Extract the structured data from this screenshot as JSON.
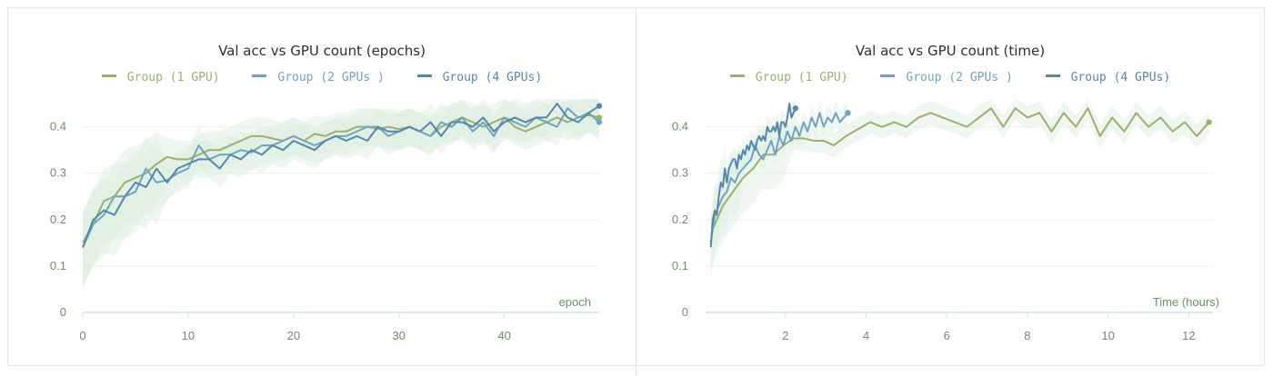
{
  "colors": {
    "g1": "#99b169",
    "g2": "#6ea3c6",
    "g4": "#5388ad",
    "band": "#dceede",
    "grid": "#edf0ee",
    "axis": "#cfe6d8",
    "tick_text": "#6d8f6a"
  },
  "legend": [
    "Group (1 GPU)",
    "Group (2 GPUs )",
    "Group (4 GPUs)"
  ],
  "chart_data": [
    {
      "type": "line",
      "title": "Val acc vs GPU count (epochs)",
      "xlabel": "epoch",
      "ylabel": "",
      "xlim": [
        0,
        49
      ],
      "ylim": [
        0,
        0.46
      ],
      "xticks": [
        0,
        10,
        20,
        30,
        40
      ],
      "yticks": [
        0,
        0.1,
        0.2,
        0.3,
        0.4
      ],
      "grid": true,
      "legend_position": "top",
      "series": [
        {
          "name": "Group (1 GPU)",
          "color_key": "g1",
          "x": [
            0,
            1,
            2,
            3,
            4,
            5,
            6,
            7,
            8,
            9,
            10,
            11,
            12,
            13,
            14,
            15,
            16,
            17,
            18,
            19,
            20,
            21,
            22,
            23,
            24,
            25,
            26,
            27,
            28,
            29,
            30,
            31,
            32,
            33,
            34,
            35,
            36,
            37,
            38,
            39,
            40,
            41,
            42,
            43,
            44,
            45,
            46,
            47,
            48,
            49
          ],
          "y": [
            0.15,
            0.19,
            0.24,
            0.25,
            0.28,
            0.29,
            0.3,
            0.32,
            0.335,
            0.33,
            0.33,
            0.34,
            0.35,
            0.35,
            0.36,
            0.37,
            0.38,
            0.38,
            0.375,
            0.37,
            0.38,
            0.37,
            0.385,
            0.38,
            0.39,
            0.39,
            0.4,
            0.4,
            0.395,
            0.4,
            0.395,
            0.4,
            0.39,
            0.38,
            0.4,
            0.41,
            0.42,
            0.41,
            0.4,
            0.41,
            0.42,
            0.4,
            0.39,
            0.4,
            0.41,
            0.42,
            0.41,
            0.42,
            0.425,
            0.42
          ]
        },
        {
          "name": "Group (2 GPUs )",
          "color_key": "g2",
          "x": [
            0,
            1,
            2,
            3,
            4,
            5,
            6,
            7,
            8,
            9,
            10,
            11,
            12,
            13,
            14,
            15,
            16,
            17,
            18,
            19,
            20,
            21,
            22,
            23,
            24,
            25,
            26,
            27,
            28,
            29,
            30,
            31,
            32,
            33,
            34,
            35,
            36,
            37,
            38,
            39,
            40,
            41,
            42,
            43,
            44,
            45,
            46,
            47,
            48,
            49
          ],
          "y": [
            0.14,
            0.19,
            0.21,
            0.25,
            0.25,
            0.26,
            0.31,
            0.28,
            0.285,
            0.3,
            0.31,
            0.36,
            0.33,
            0.34,
            0.34,
            0.35,
            0.345,
            0.36,
            0.36,
            0.37,
            0.38,
            0.37,
            0.36,
            0.37,
            0.38,
            0.38,
            0.39,
            0.4,
            0.4,
            0.38,
            0.39,
            0.4,
            0.39,
            0.38,
            0.41,
            0.4,
            0.42,
            0.39,
            0.41,
            0.38,
            0.42,
            0.41,
            0.4,
            0.42,
            0.41,
            0.4,
            0.44,
            0.42,
            0.43,
            0.41
          ]
        },
        {
          "name": "Group (4 GPUs)",
          "color_key": "g4",
          "x": [
            0,
            1,
            2,
            3,
            4,
            5,
            6,
            7,
            8,
            9,
            10,
            11,
            12,
            13,
            14,
            15,
            16,
            17,
            18,
            19,
            20,
            21,
            22,
            23,
            24,
            25,
            26,
            27,
            28,
            29,
            30,
            31,
            32,
            33,
            34,
            35,
            36,
            37,
            38,
            39,
            40,
            41,
            42,
            43,
            44,
            45,
            46,
            47,
            48,
            49
          ],
          "y": [
            0.14,
            0.2,
            0.22,
            0.21,
            0.25,
            0.28,
            0.27,
            0.31,
            0.28,
            0.31,
            0.32,
            0.33,
            0.33,
            0.31,
            0.34,
            0.33,
            0.35,
            0.34,
            0.36,
            0.35,
            0.37,
            0.36,
            0.35,
            0.37,
            0.38,
            0.37,
            0.38,
            0.37,
            0.4,
            0.39,
            0.39,
            0.4,
            0.39,
            0.41,
            0.38,
            0.41,
            0.41,
            0.4,
            0.42,
            0.39,
            0.41,
            0.42,
            0.41,
            0.42,
            0.42,
            0.45,
            0.42,
            0.41,
            0.43,
            0.445
          ]
        }
      ]
    },
    {
      "type": "line",
      "title": "Val acc vs GPU count (time)",
      "xlabel": "Time (hours)",
      "ylabel": "",
      "xlim": [
        0,
        12.6
      ],
      "ylim": [
        0,
        0.46
      ],
      "xticks": [
        2,
        4,
        6,
        8,
        10,
        12
      ],
      "yticks": [
        0,
        0.1,
        0.2,
        0.3,
        0.4
      ],
      "grid": true,
      "legend_position": "top",
      "series": [
        {
          "name": "Group (1 GPU)",
          "color_key": "g1",
          "x": [
            0.2,
            0.45,
            0.7,
            0.95,
            1.2,
            1.45,
            1.7,
            1.95,
            2.2,
            2.45,
            2.7,
            2.95,
            3.2,
            3.5,
            3.8,
            4.1,
            4.4,
            4.7,
            5.0,
            5.3,
            5.6,
            5.9,
            6.2,
            6.5,
            6.8,
            7.1,
            7.4,
            7.7,
            8.0,
            8.3,
            8.6,
            8.9,
            9.2,
            9.5,
            9.8,
            10.1,
            10.4,
            10.7,
            11.0,
            11.3,
            11.6,
            11.9,
            12.2,
            12.5
          ],
          "y": [
            0.18,
            0.23,
            0.26,
            0.29,
            0.31,
            0.34,
            0.34,
            0.36,
            0.375,
            0.375,
            0.37,
            0.37,
            0.36,
            0.38,
            0.395,
            0.41,
            0.4,
            0.41,
            0.4,
            0.42,
            0.43,
            0.42,
            0.41,
            0.4,
            0.42,
            0.44,
            0.4,
            0.44,
            0.42,
            0.43,
            0.39,
            0.43,
            0.4,
            0.44,
            0.38,
            0.42,
            0.39,
            0.43,
            0.4,
            0.42,
            0.39,
            0.41,
            0.38,
            0.41
          ]
        },
        {
          "name": "Group (2 GPUs )",
          "color_key": "g2",
          "x": [
            0.15,
            0.25,
            0.35,
            0.45,
            0.55,
            0.65,
            0.75,
            0.85,
            0.95,
            1.05,
            1.15,
            1.25,
            1.35,
            1.45,
            1.55,
            1.65,
            1.75,
            1.85,
            1.95,
            2.05,
            2.15,
            2.25,
            2.35,
            2.45,
            2.55,
            2.65,
            2.75,
            2.85,
            2.95,
            3.05,
            3.15,
            3.25,
            3.35,
            3.45,
            3.55
          ],
          "y": [
            0.15,
            0.21,
            0.23,
            0.25,
            0.26,
            0.29,
            0.28,
            0.3,
            0.31,
            0.32,
            0.33,
            0.36,
            0.34,
            0.33,
            0.35,
            0.37,
            0.34,
            0.38,
            0.36,
            0.39,
            0.37,
            0.4,
            0.38,
            0.41,
            0.39,
            0.42,
            0.4,
            0.43,
            0.4,
            0.42,
            0.41,
            0.43,
            0.41,
            0.42,
            0.43
          ]
        },
        {
          "name": "Group (4 GPUs)",
          "color_key": "g4",
          "x": [
            0.15,
            0.2,
            0.25,
            0.3,
            0.35,
            0.4,
            0.45,
            0.5,
            0.55,
            0.6,
            0.65,
            0.7,
            0.75,
            0.8,
            0.85,
            0.9,
            0.95,
            1.0,
            1.05,
            1.1,
            1.15,
            1.2,
            1.25,
            1.3,
            1.35,
            1.4,
            1.45,
            1.5,
            1.55,
            1.6,
            1.65,
            1.7,
            1.75,
            1.8,
            1.85,
            1.9,
            1.95,
            2.0,
            2.05,
            2.1,
            2.15,
            2.2,
            2.25
          ],
          "y": [
            0.14,
            0.2,
            0.22,
            0.21,
            0.25,
            0.28,
            0.27,
            0.31,
            0.28,
            0.31,
            0.32,
            0.33,
            0.33,
            0.31,
            0.34,
            0.33,
            0.35,
            0.34,
            0.36,
            0.35,
            0.37,
            0.36,
            0.35,
            0.37,
            0.38,
            0.37,
            0.38,
            0.37,
            0.4,
            0.39,
            0.39,
            0.4,
            0.39,
            0.41,
            0.38,
            0.41,
            0.41,
            0.4,
            0.42,
            0.45,
            0.42,
            0.43,
            0.44
          ]
        }
      ]
    }
  ]
}
